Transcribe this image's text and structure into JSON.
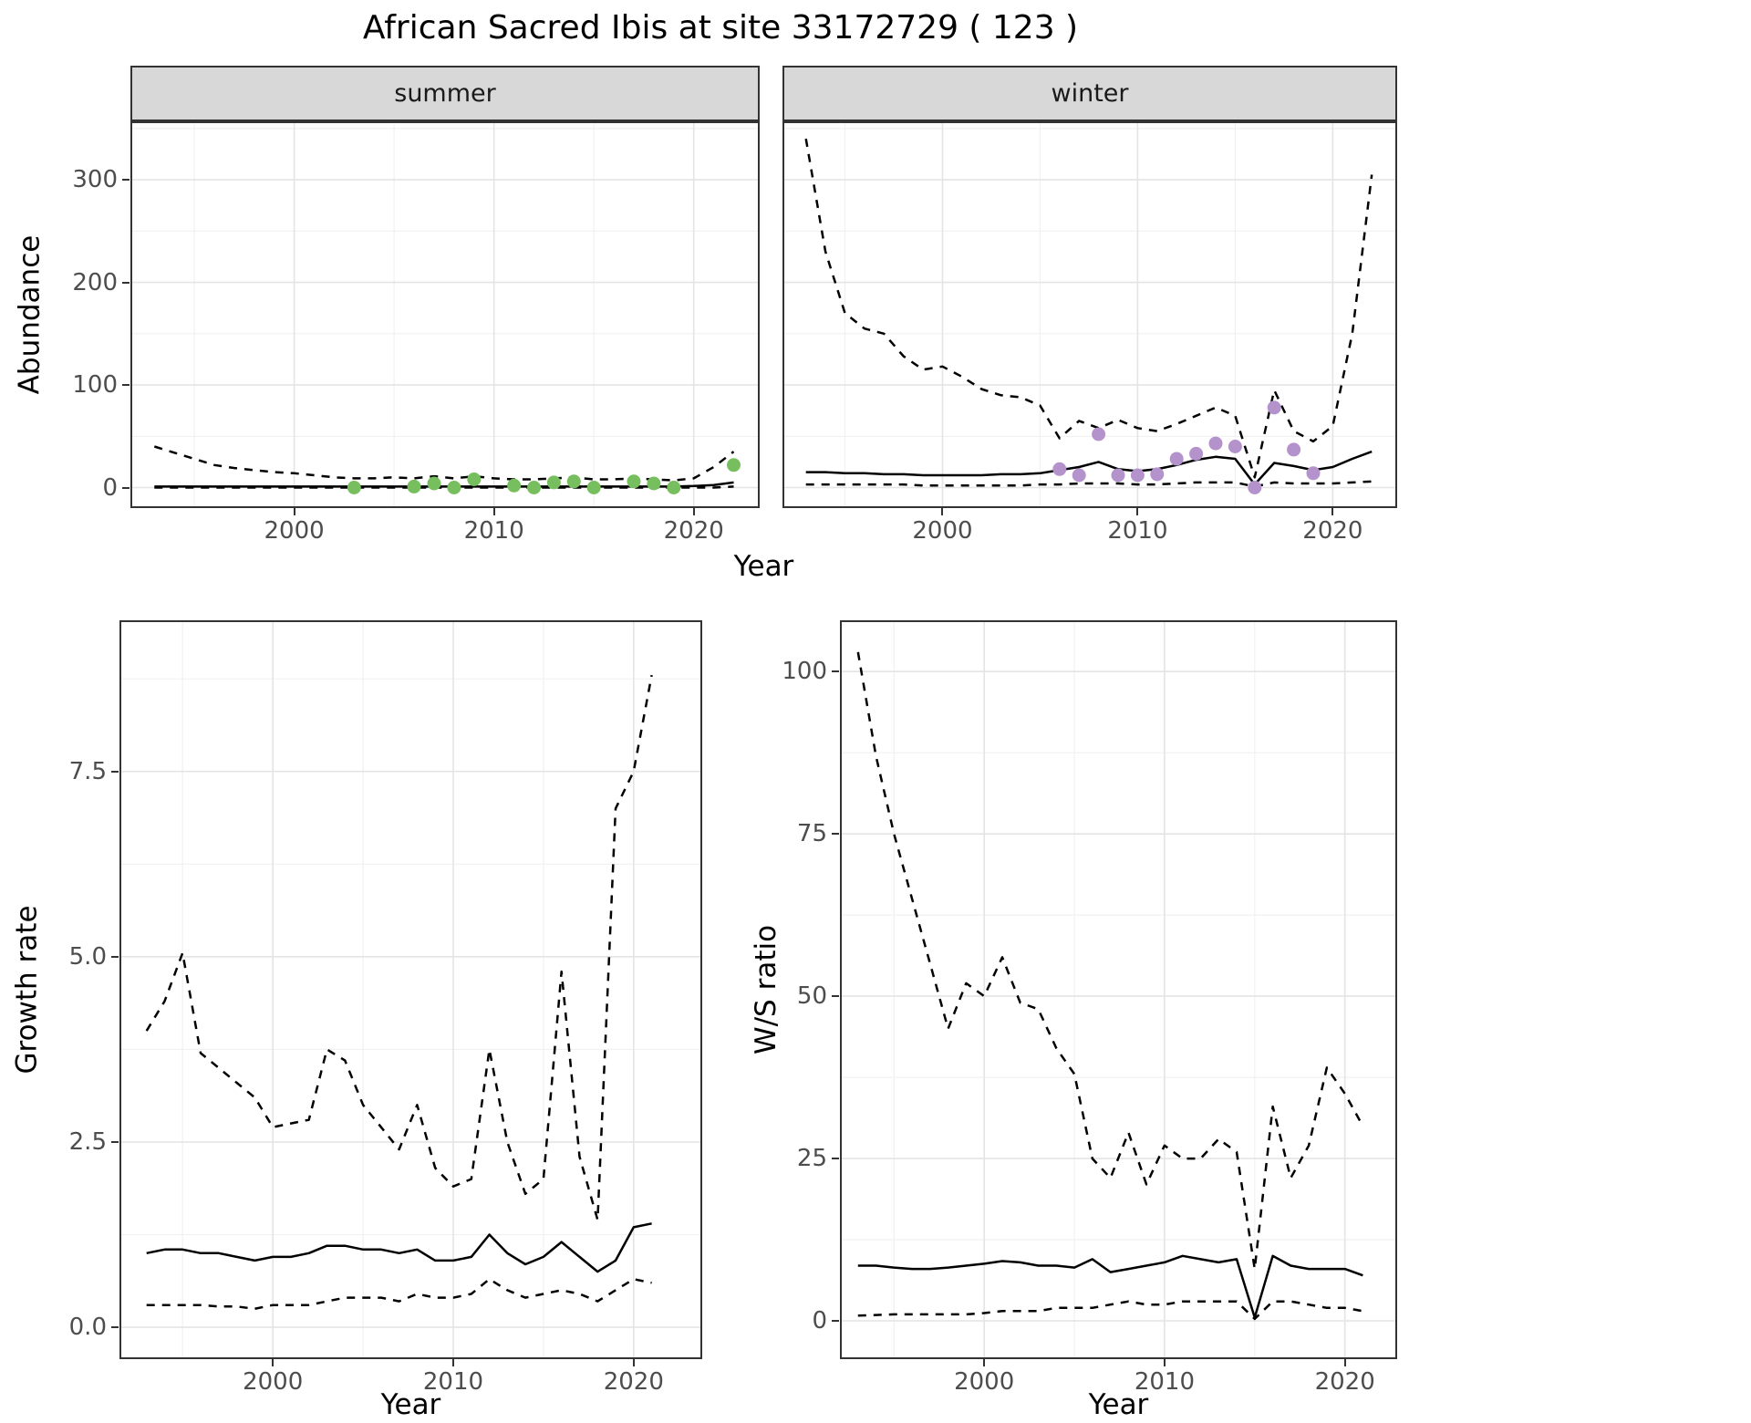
{
  "title": "African Sacred Ibis at site 33172729 ( 123 )",
  "facets": {
    "summer": "summer",
    "winter": "winter"
  },
  "axes": {
    "year": "Year",
    "abundance": "Abundance",
    "growth_rate": "Growth rate",
    "ws_ratio": "W/S ratio"
  },
  "colors": {
    "summer_points": "#77bf5e",
    "winter_points": "#b493cc",
    "line": "#000000",
    "strip_bg": "#d8d8d8",
    "panel_border": "#333333",
    "grid_major": "#e4e4e4",
    "grid_minor": "#f1f1f1",
    "tick_text": "#4d4d4d"
  },
  "chart_data": [
    {
      "id": "abundance-summer",
      "type": "line",
      "facet": "summer",
      "xlabel": "Year",
      "ylabel": "Abundance",
      "grid": true,
      "legend": "none",
      "xlim": [
        1991.8,
        2023.3
      ],
      "ylim": [
        -20,
        357
      ],
      "xticks": [
        2000,
        2010,
        2020
      ],
      "xticklabels": [
        "2000",
        "2010",
        "2020"
      ],
      "yticks": [
        0,
        100,
        200,
        300
      ],
      "yticklabels": [
        "0",
        "100",
        "200",
        "300"
      ],
      "x": [
        1993,
        1994,
        1995,
        1996,
        1997,
        1998,
        1999,
        2000,
        2001,
        2002,
        2003,
        2004,
        2005,
        2006,
        2007,
        2008,
        2009,
        2010,
        2011,
        2012,
        2013,
        2014,
        2015,
        2016,
        2017,
        2018,
        2019,
        2020,
        2021,
        2022
      ],
      "series": [
        {
          "name": "upper CI",
          "style": "dashed",
          "values": [
            40,
            34,
            28,
            22,
            19,
            17,
            15,
            14,
            12,
            10,
            9,
            9,
            10,
            9,
            11,
            9,
            11,
            9,
            8,
            8,
            9,
            10,
            8,
            8,
            9,
            8,
            7,
            9,
            20,
            35
          ]
        },
        {
          "name": "median fit",
          "style": "solid",
          "values": [
            1,
            1,
            1,
            1,
            1,
            1,
            1,
            1,
            1,
            1,
            1,
            1,
            1,
            1,
            1,
            1,
            1,
            1,
            1,
            1,
            1,
            1,
            1,
            1,
            1,
            1,
            1,
            1.5,
            2.5,
            5
          ]
        },
        {
          "name": "lower CI",
          "style": "dashed",
          "values": [
            0,
            0,
            0,
            0,
            0,
            0,
            0,
            0,
            0,
            0,
            0,
            0,
            0,
            0,
            0,
            0,
            0,
            0,
            0,
            0,
            0,
            0,
            0,
            0,
            0,
            0,
            0,
            0,
            0,
            1
          ]
        }
      ],
      "points": {
        "name": "observed counts (summer)",
        "color_key": "summer_points",
        "x": [
          2003,
          2006,
          2007,
          2008,
          2009,
          2011,
          2012,
          2013,
          2014,
          2015,
          2017,
          2018,
          2019,
          2022
        ],
        "y": [
          0,
          1,
          4,
          0,
          8,
          2,
          0,
          5,
          6,
          0,
          6,
          4,
          0,
          22
        ]
      }
    },
    {
      "id": "abundance-winter",
      "type": "line",
      "facet": "winter",
      "xlabel": "Year",
      "ylabel": "Abundance",
      "grid": true,
      "legend": "none",
      "xlim": [
        1991.8,
        2023.3
      ],
      "ylim": [
        -20,
        357
      ],
      "xticks": [
        2000,
        2010,
        2020
      ],
      "xticklabels": [
        "2000",
        "2010",
        "2020"
      ],
      "yticks": [
        0,
        100,
        200,
        300
      ],
      "yticklabels": [
        "0",
        "100",
        "200",
        "300"
      ],
      "x": [
        1993,
        1994,
        1995,
        1996,
        1997,
        1998,
        1999,
        2000,
        2001,
        2002,
        2003,
        2004,
        2005,
        2006,
        2007,
        2008,
        2009,
        2010,
        2011,
        2012,
        2013,
        2014,
        2015,
        2016,
        2017,
        2018,
        2019,
        2020,
        2021,
        2022
      ],
      "series": [
        {
          "name": "upper CI",
          "style": "dashed",
          "values": [
            340,
            230,
            170,
            155,
            150,
            128,
            115,
            118,
            108,
            96,
            90,
            88,
            80,
            48,
            65,
            58,
            66,
            58,
            55,
            62,
            70,
            78,
            70,
            10,
            95,
            55,
            45,
            60,
            150,
            305
          ]
        },
        {
          "name": "median fit",
          "style": "solid",
          "values": [
            15,
            15,
            14,
            14,
            13,
            13,
            12,
            12,
            12,
            12,
            13,
            13,
            14,
            17,
            20,
            25,
            18,
            16,
            18,
            22,
            27,
            30,
            28,
            3,
            24,
            21,
            17,
            20,
            28,
            35
          ]
        },
        {
          "name": "lower CI",
          "style": "dashed",
          "values": [
            3,
            3,
            3,
            3,
            3,
            3,
            2,
            2,
            2,
            2,
            2,
            2,
            3,
            3,
            4,
            4,
            4,
            3,
            3,
            4,
            5,
            5,
            5,
            1,
            5,
            4,
            4,
            4,
            5,
            6
          ]
        }
      ],
      "points": {
        "name": "observed counts (winter)",
        "color_key": "winter_points",
        "x": [
          2006,
          2007,
          2008,
          2009,
          2010,
          2011,
          2012,
          2013,
          2014,
          2015,
          2016,
          2017,
          2018,
          2019
        ],
        "y": [
          18,
          12,
          52,
          12,
          12,
          13,
          28,
          33,
          43,
          40,
          0,
          78,
          37,
          14
        ]
      }
    },
    {
      "id": "growth-rate",
      "type": "line",
      "facet": null,
      "xlabel": "Year",
      "ylabel": "Growth rate",
      "grid": true,
      "legend": "none",
      "xlim": [
        1991.5,
        2023.8
      ],
      "ylim": [
        -0.43,
        9.54
      ],
      "xticks": [
        2000,
        2010,
        2020
      ],
      "xticklabels": [
        "2000",
        "2010",
        "2020"
      ],
      "yticks": [
        0,
        2.5,
        5,
        7.5
      ],
      "yticklabels": [
        "0.0",
        "2.5",
        "5.0",
        "7.5"
      ],
      "x": [
        1993,
        1994,
        1995,
        1996,
        1997,
        1998,
        1999,
        2000,
        2001,
        2002,
        2003,
        2004,
        2005,
        2006,
        2007,
        2008,
        2009,
        2010,
        2011,
        2012,
        2013,
        2014,
        2015,
        2016,
        2017,
        2018,
        2019,
        2020,
        2021
      ],
      "series": [
        {
          "name": "upper CI",
          "style": "dashed",
          "values": [
            4.0,
            4.4,
            5.05,
            3.7,
            3.5,
            3.3,
            3.1,
            2.7,
            2.75,
            2.8,
            3.75,
            3.6,
            3.0,
            2.7,
            2.4,
            3.0,
            2.15,
            1.9,
            2.0,
            3.75,
            2.5,
            1.8,
            2.0,
            4.8,
            2.3,
            1.45,
            7.0,
            7.5,
            8.8
          ]
        },
        {
          "name": "median fit",
          "style": "solid",
          "values": [
            1.0,
            1.05,
            1.05,
            1.0,
            1.0,
            0.95,
            0.9,
            0.95,
            0.95,
            1.0,
            1.1,
            1.1,
            1.05,
            1.05,
            1.0,
            1.05,
            0.9,
            0.9,
            0.95,
            1.25,
            1.0,
            0.85,
            0.95,
            1.15,
            0.95,
            0.75,
            0.9,
            1.35,
            1.4
          ]
        },
        {
          "name": "lower CI",
          "style": "dashed",
          "values": [
            0.3,
            0.3,
            0.3,
            0.3,
            0.28,
            0.28,
            0.25,
            0.3,
            0.3,
            0.3,
            0.35,
            0.4,
            0.4,
            0.4,
            0.35,
            0.45,
            0.4,
            0.4,
            0.45,
            0.65,
            0.5,
            0.4,
            0.45,
            0.5,
            0.45,
            0.35,
            0.5,
            0.65,
            0.6
          ]
        }
      ]
    },
    {
      "id": "ws-ratio",
      "type": "line",
      "facet": null,
      "xlabel": "Year",
      "ylabel": "W/S ratio",
      "grid": true,
      "legend": "none",
      "xlim": [
        1992.0,
        2022.9
      ],
      "ylim": [
        -5.9,
        107.9
      ],
      "xticks": [
        2000,
        2010,
        2020
      ],
      "xticklabels": [
        "2000",
        "2010",
        "2020"
      ],
      "yticks": [
        0,
        25,
        50,
        75,
        100
      ],
      "yticklabels": [
        "0",
        "25",
        "50",
        "75",
        "100"
      ],
      "x": [
        1993,
        1994,
        1995,
        1996,
        1997,
        1998,
        1999,
        2000,
        2001,
        2002,
        2003,
        2004,
        2005,
        2006,
        2007,
        2008,
        2009,
        2010,
        2011,
        2012,
        2013,
        2014,
        2015,
        2016,
        2017,
        2018,
        2019,
        2020,
        2021
      ],
      "series": [
        {
          "name": "upper CI",
          "style": "dashed",
          "values": [
            103,
            87,
            75,
            65,
            55,
            45,
            52,
            50,
            56,
            49,
            48,
            42,
            38,
            25,
            22,
            29,
            21,
            27,
            25,
            25,
            28,
            26,
            8,
            33,
            22,
            27,
            39,
            35,
            30
          ]
        },
        {
          "name": "median fit",
          "style": "solid",
          "values": [
            8.5,
            8.5,
            8.2,
            8,
            8,
            8.2,
            8.5,
            8.8,
            9.2,
            9,
            8.5,
            8.5,
            8.2,
            9.5,
            7.5,
            8,
            8.5,
            9,
            10,
            9.5,
            9,
            9.5,
            0.5,
            10,
            8.5,
            8,
            8,
            8,
            7
          ]
        },
        {
          "name": "lower CI",
          "style": "dashed",
          "values": [
            0.8,
            0.9,
            1,
            1,
            1,
            1,
            1,
            1.2,
            1.5,
            1.5,
            1.5,
            2,
            2,
            2,
            2.5,
            3,
            2.5,
            2.5,
            3,
            3,
            3,
            3,
            0.3,
            3,
            3,
            2.5,
            2,
            2,
            1.5
          ]
        }
      ]
    }
  ]
}
